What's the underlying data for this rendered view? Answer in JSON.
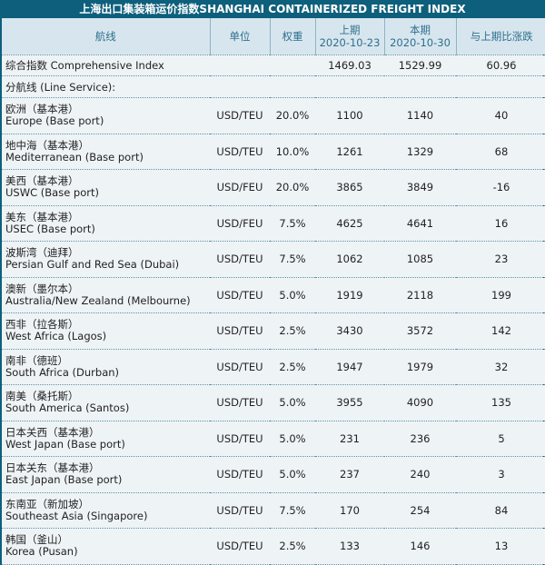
{
  "title": "上海出口集装箱运价指数SHANGHAI CONTAINERIZED FREIGHT INDEX",
  "headers": {
    "route": "航线",
    "unit": "单位",
    "weight": "权重",
    "prev_label": "上期",
    "prev_date": "2020-10-23",
    "curr_label": "本期",
    "curr_date": "2020-10-30",
    "change": "与上期比涨跌"
  },
  "comprehensive": {
    "label": "综合指数 Comprehensive Index",
    "prev": "1469.03",
    "curr": "1529.99",
    "change": "60.96"
  },
  "section_label": "分航线 (Line Service):",
  "rows": [
    {
      "cn": "欧洲（基本港）",
      "en": "Europe (Base port)",
      "unit": "USD/TEU",
      "weight": "20.0%",
      "prev": "1100",
      "curr": "1140",
      "change": "40"
    },
    {
      "cn": "地中海（基本港）",
      "en": "Mediterranean (Base port)",
      "unit": "USD/TEU",
      "weight": "10.0%",
      "prev": "1261",
      "curr": "1329",
      "change": "68"
    },
    {
      "cn": "美西（基本港）",
      "en": "USWC (Base port)",
      "unit": "USD/FEU",
      "weight": "20.0%",
      "prev": "3865",
      "curr": "3849",
      "change": "-16"
    },
    {
      "cn": "美东（基本港）",
      "en": "USEC (Base port)",
      "unit": "USD/FEU",
      "weight": "7.5%",
      "prev": "4625",
      "curr": "4641",
      "change": "16"
    },
    {
      "cn": "波斯湾（迪拜）",
      "en": "Persian Gulf and Red Sea (Dubai)",
      "unit": "USD/TEU",
      "weight": "7.5%",
      "prev": "1062",
      "curr": "1085",
      "change": "23"
    },
    {
      "cn": "澳新（墨尔本）",
      "en": "Australia/New Zealand (Melbourne)",
      "unit": "USD/TEU",
      "weight": "5.0%",
      "prev": "1919",
      "curr": "2118",
      "change": "199"
    },
    {
      "cn": "西非（拉各斯）",
      "en": "West Africa (Lagos)",
      "unit": "USD/TEU",
      "weight": "2.5%",
      "prev": "3430",
      "curr": "3572",
      "change": "142"
    },
    {
      "cn": "南非（德班）",
      "en": "South Africa (Durban)",
      "unit": "USD/TEU",
      "weight": "2.5%",
      "prev": "1947",
      "curr": "1979",
      "change": "32"
    },
    {
      "cn": "南美（桑托斯）",
      "en": "South America (Santos)",
      "unit": "USD/TEU",
      "weight": "5.0%",
      "prev": "3955",
      "curr": "4090",
      "change": "135"
    },
    {
      "cn": "日本关西（基本港）",
      "en": "West Japan (Base port)",
      "unit": "USD/TEU",
      "weight": "5.0%",
      "prev": "231",
      "curr": "236",
      "change": "5"
    },
    {
      "cn": "日本关东（基本港）",
      "en": "East Japan (Base port)",
      "unit": "USD/TEU",
      "weight": "5.0%",
      "prev": "237",
      "curr": "240",
      "change": "3"
    },
    {
      "cn": "东南亚（新加坡）",
      "en": "Southeast Asia (Singapore)",
      "unit": "USD/TEU",
      "weight": "7.5%",
      "prev": "170",
      "curr": "254",
      "change": "84"
    },
    {
      "cn": "韩国（釜山）",
      "en": "Korea (Pusan)",
      "unit": "USD/TEU",
      "weight": "2.5%",
      "prev": "133",
      "curr": "146",
      "change": "13"
    }
  ]
}
